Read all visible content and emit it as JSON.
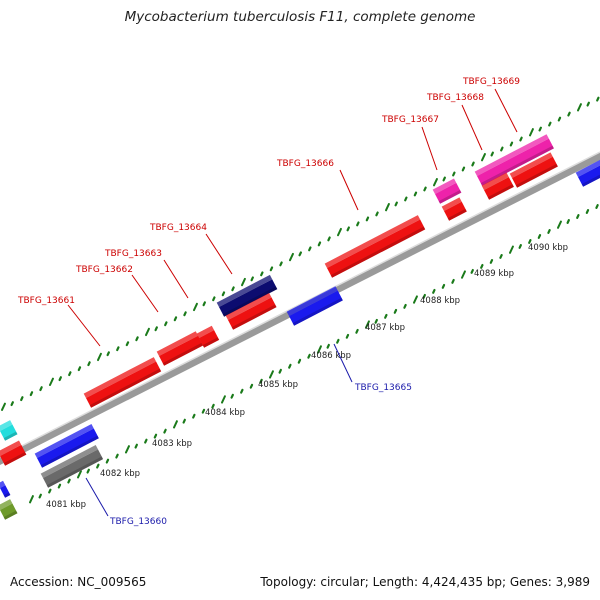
{
  "title": "Mycobacterium tuberculosis F11, complete genome",
  "footer": {
    "accession": "Accession: NC_009565",
    "summary": "Topology: circular; Length: 4,424,435 bp; Genes: 3,989"
  },
  "colors": {
    "red": "#ee1111",
    "pink": "#ee22aa",
    "blue": "#1a1aee",
    "navy": "#0c0c70",
    "gray": "#6a6a6a",
    "cyan": "#22dddd",
    "olive": "#6e9a2a",
    "backbone": "#9a9a9a",
    "tick": "#1a7a1a",
    "label_forward": "#cc0000",
    "label_reverse": "#1a1aaa"
  },
  "ticks": [
    "4081 kbp",
    "4082 kbp",
    "4083 kbp",
    "4084 kbp",
    "4085 kbp",
    "4086 kbp",
    "4087 kbp",
    "4088 kbp",
    "4089 kbp",
    "4090 kbp"
  ],
  "genes": [
    {
      "label": "TBFG_13660",
      "strand": "reverse"
    },
    {
      "label": "TBFG_13661",
      "strand": "forward"
    },
    {
      "label": "TBFG_13662",
      "strand": "forward"
    },
    {
      "label": "TBFG_13663",
      "strand": "forward"
    },
    {
      "label": "TBFG_13664",
      "strand": "forward"
    },
    {
      "label": "TBFG_13665",
      "strand": "reverse"
    },
    {
      "label": "TBFG_13666",
      "strand": "forward"
    },
    {
      "label": "TBFG_13667",
      "strand": "forward"
    },
    {
      "label": "TBFG_13668",
      "strand": "forward"
    },
    {
      "label": "TBFG_13669",
      "strand": "forward"
    }
  ]
}
